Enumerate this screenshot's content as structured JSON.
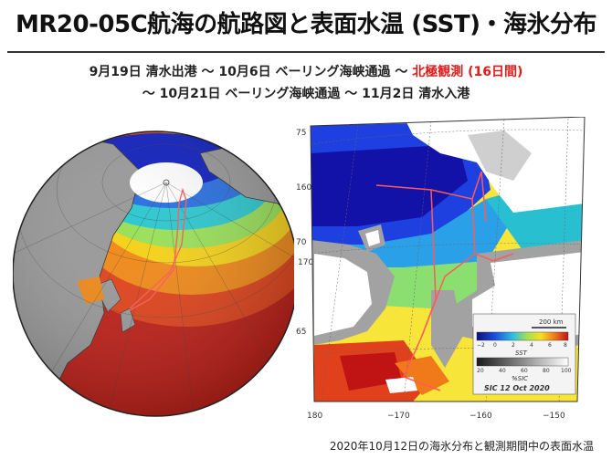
{
  "title": "MR20-05C航海の航路図と表面水温 (SST)・海氷分布",
  "subtitle": {
    "line1_main": "9月19日 清水出港 〜 10月6日 ベーリング海峡通過 〜 ",
    "line1_highlight": "北極観測 (16日間)",
    "line2": "〜 10月21日 ベーリング海峡通過 〜 11月2日 清水入港"
  },
  "map": {
    "lat_labels": [
      "75",
      "70",
      "65"
    ],
    "lon_labels": [
      "160",
      "170",
      "180",
      "−170",
      "−160",
      "−150"
    ],
    "legend": {
      "scale_label": "200 km",
      "sst_ticks": [
        "−2",
        "0",
        "2",
        "4",
        "6",
        "8"
      ],
      "sst_label": "SST",
      "sic_ticks": [
        "20",
        "40",
        "60",
        "80",
        "100"
      ],
      "sic_label": "%SIC",
      "date_label": "SIC 12 Oct 2020"
    }
  },
  "caption": "2020年10月12日の海氷分布と観測期間中の表面水温",
  "colors": {
    "highlight": "#e01b1b",
    "track": "#ff5a5a"
  }
}
